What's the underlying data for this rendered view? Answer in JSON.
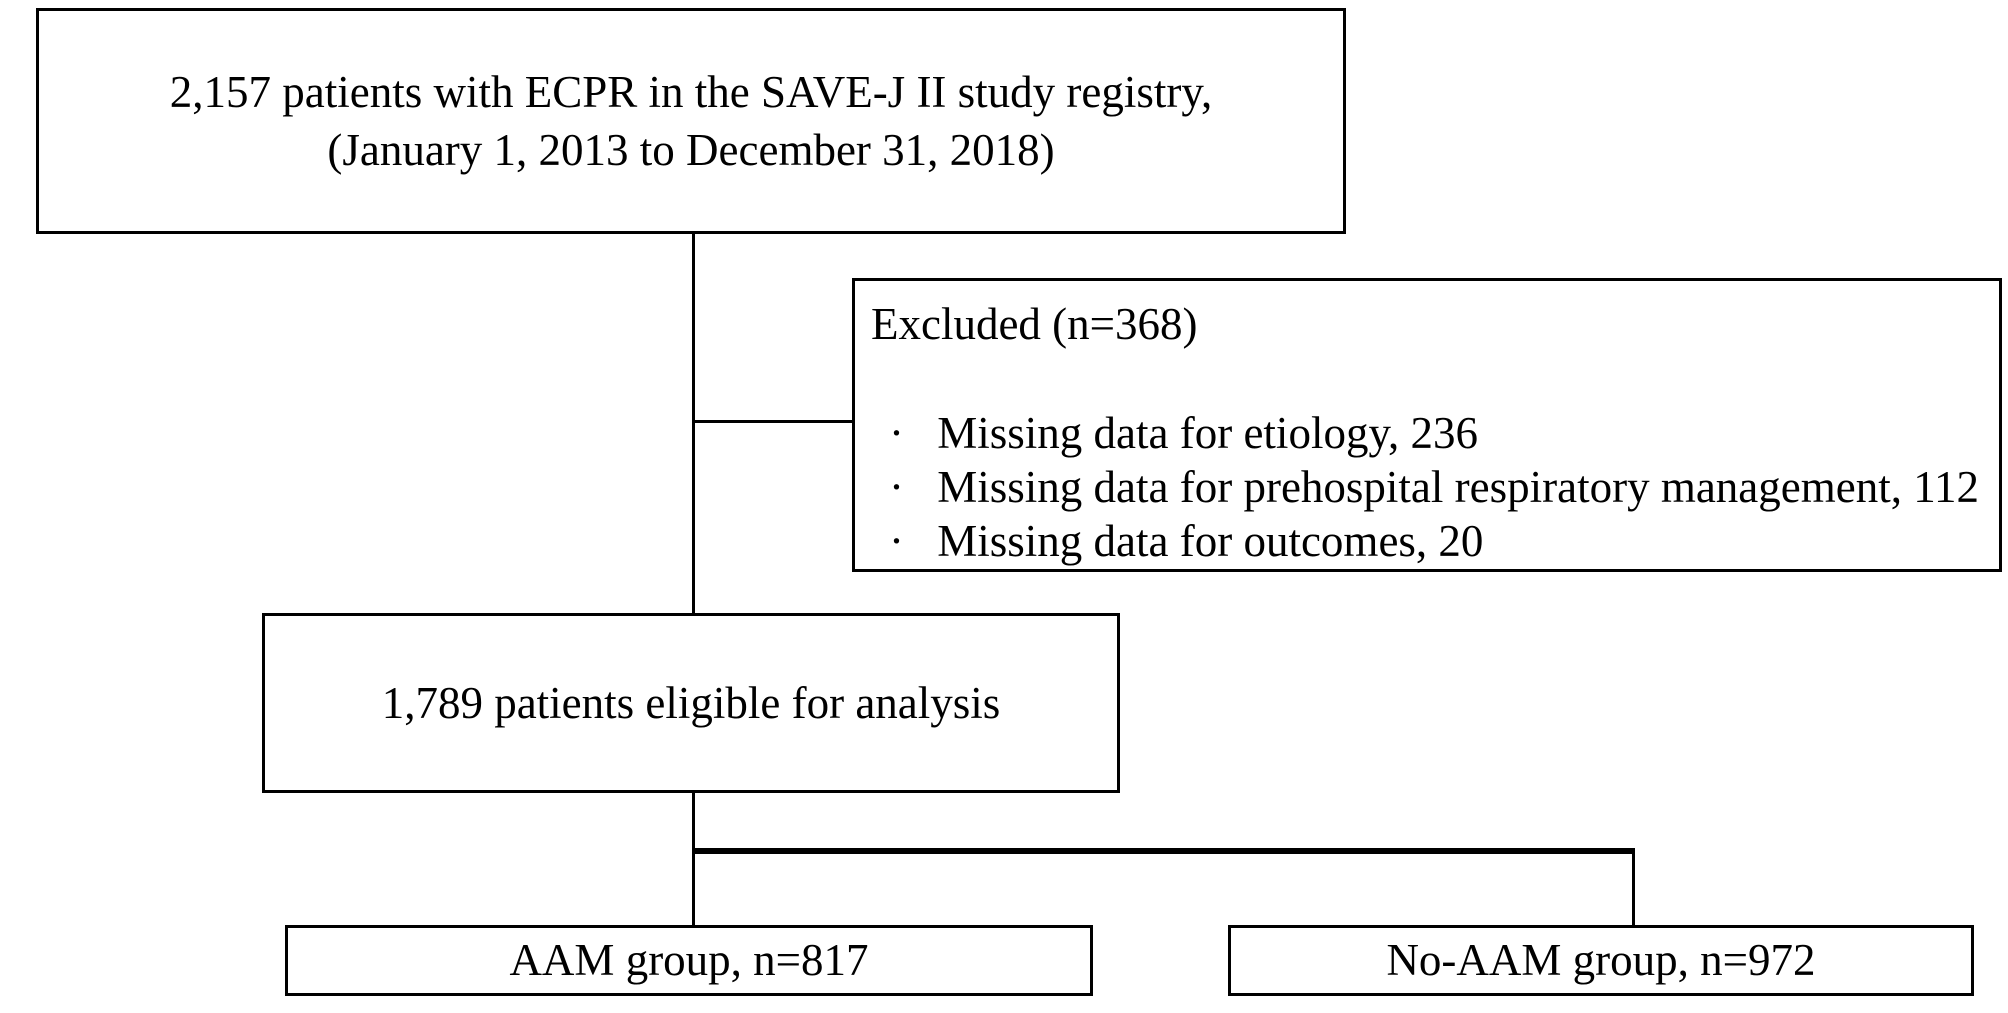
{
  "flow": {
    "registry": {
      "line1": "2,157 patients with ECPR in the SAVE-J II study registry,",
      "line2": "(January 1, 2013 to December 31, 2018)"
    },
    "excluded": {
      "title": "Excluded (n=368)",
      "bullet_char": "·",
      "items": [
        "Missing data for etiology, 236",
        "Missing data for prehospital respiratory management, 112",
        "Missing data for outcomes, 20"
      ]
    },
    "eligible": {
      "label": "1,789 patients eligible for analysis"
    },
    "groups": {
      "aam": {
        "label": "AAM group, n=817"
      },
      "no_aam": {
        "label": "No-AAM group, n=972"
      }
    },
    "colors": {
      "line": "#000000",
      "background": "#ffffff",
      "text": "#000000"
    }
  }
}
